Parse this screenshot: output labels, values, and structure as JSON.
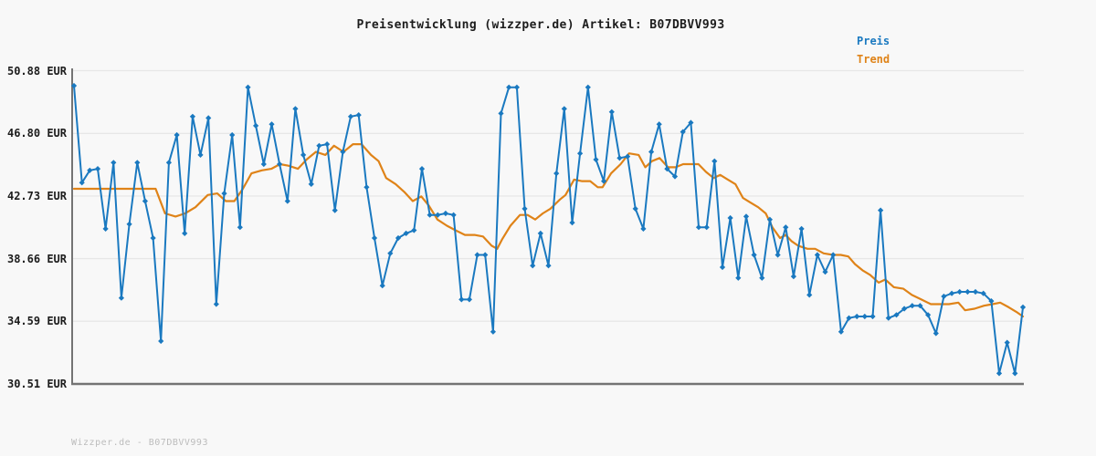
{
  "title": "Preisentwicklung (wizzper.de) Artikel: B07DBVV993",
  "legend": {
    "preis_label": "Preis",
    "trend_label": "Trend"
  },
  "watermark": "Wizzper.de - B07DBVV993",
  "colors": {
    "price": "#1a79c0",
    "trend": "#df8318",
    "grid": "#e7e7e7",
    "axis": "#747474",
    "text": "#1c1c1c",
    "watermark": "#bcbcbc",
    "background": "#f8f8f8"
  },
  "y_axis": {
    "tick_labels": [
      "50.88 EUR",
      "46.80 EUR",
      "42.73 EUR",
      "38.66 EUR",
      "34.59 EUR",
      "30.51 EUR"
    ],
    "tick_values": [
      50.88,
      46.8,
      42.73,
      38.66,
      34.59,
      30.51
    ]
  },
  "chart_data": {
    "type": "line",
    "title": "Preisentwicklung (wizzper.de) Artikel: B07DBVV993",
    "unit": "EUR",
    "ylim": [
      30.51,
      50.88
    ],
    "y_ticks": [
      50.88,
      46.8,
      42.73,
      38.66,
      34.59,
      30.51
    ],
    "grid": "horizontal",
    "legend_position": "top-right",
    "x_axis_labels": "none",
    "series": [
      {
        "name": "Preis",
        "color": "#1a79c0",
        "marker": "diamond",
        "values": [
          49.9,
          43.6,
          44.4,
          44.5,
          40.6,
          44.9,
          36.1,
          40.9,
          44.9,
          42.4,
          40.0,
          33.3,
          44.9,
          46.7,
          40.3,
          47.9,
          45.4,
          47.8,
          35.7,
          42.9,
          46.7,
          40.7,
          49.8,
          47.3,
          44.8,
          47.4,
          44.8,
          42.4,
          48.4,
          45.4,
          43.5,
          46.0,
          46.1,
          41.8,
          45.6,
          47.9,
          48.0,
          43.3,
          40.0,
          36.9,
          39.0,
          40.0,
          40.3,
          40.5,
          44.5,
          41.5,
          41.5,
          41.6,
          41.5,
          36.0,
          36.0,
          38.9,
          38.9,
          33.9,
          48.1,
          49.8,
          49.8,
          41.9,
          38.2,
          40.3,
          38.2,
          44.2,
          48.4,
          41.0,
          45.5,
          49.8,
          45.1,
          43.7,
          48.2,
          45.2,
          45.3,
          41.9,
          40.6,
          45.6,
          47.4,
          44.5,
          44.0,
          46.9,
          47.5,
          40.7,
          40.7,
          45.0,
          38.1,
          41.3,
          37.4,
          41.4,
          38.9,
          37.4,
          41.2,
          38.9,
          40.7,
          37.5,
          40.6,
          36.3,
          38.9,
          37.8,
          38.9,
          33.9,
          34.8,
          34.9,
          34.9,
          34.9,
          41.8,
          34.8,
          35.0,
          35.4,
          35.6,
          35.6,
          35.0,
          33.8,
          36.2,
          36.4,
          36.5,
          36.5,
          36.5,
          36.4,
          35.9,
          31.2,
          33.2,
          31.2,
          35.5
        ]
      },
      {
        "name": "Trend",
        "color": "#df8318",
        "marker": "none",
        "points": [
          [
            0.0,
            43.2
          ],
          [
            0.086,
            43.2
          ],
          [
            0.096,
            41.6
          ],
          [
            0.107,
            41.4
          ],
          [
            0.117,
            41.6
          ],
          [
            0.128,
            42.0
          ],
          [
            0.141,
            42.8
          ],
          [
            0.151,
            42.9
          ],
          [
            0.16,
            42.4
          ],
          [
            0.169,
            42.4
          ],
          [
            0.178,
            43.2
          ],
          [
            0.187,
            44.2
          ],
          [
            0.198,
            44.4
          ],
          [
            0.208,
            44.5
          ],
          [
            0.217,
            44.8
          ],
          [
            0.226,
            44.7
          ],
          [
            0.236,
            44.5
          ],
          [
            0.245,
            45.1
          ],
          [
            0.255,
            45.6
          ],
          [
            0.265,
            45.4
          ],
          [
            0.274,
            46.0
          ],
          [
            0.284,
            45.6
          ],
          [
            0.294,
            46.1
          ],
          [
            0.303,
            46.1
          ],
          [
            0.313,
            45.4
          ],
          [
            0.321,
            45.0
          ],
          [
            0.329,
            43.9
          ],
          [
            0.339,
            43.5
          ],
          [
            0.348,
            43.0
          ],
          [
            0.357,
            42.4
          ],
          [
            0.366,
            42.7
          ],
          [
            0.374,
            42.1
          ],
          [
            0.383,
            41.2
          ],
          [
            0.393,
            40.8
          ],
          [
            0.402,
            40.5
          ],
          [
            0.412,
            40.2
          ],
          [
            0.422,
            40.2
          ],
          [
            0.431,
            40.1
          ],
          [
            0.44,
            39.5
          ],
          [
            0.446,
            39.3
          ],
          [
            0.451,
            39.9
          ],
          [
            0.46,
            40.8
          ],
          [
            0.47,
            41.5
          ],
          [
            0.478,
            41.5
          ],
          [
            0.486,
            41.2
          ],
          [
            0.494,
            41.6
          ],
          [
            0.502,
            41.9
          ],
          [
            0.512,
            42.5
          ],
          [
            0.518,
            42.8
          ],
          [
            0.527,
            43.8
          ],
          [
            0.535,
            43.7
          ],
          [
            0.544,
            43.7
          ],
          [
            0.552,
            43.3
          ],
          [
            0.557,
            43.3
          ],
          [
            0.566,
            44.2
          ],
          [
            0.576,
            44.8
          ],
          [
            0.585,
            45.5
          ],
          [
            0.595,
            45.4
          ],
          [
            0.602,
            44.6
          ],
          [
            0.609,
            45.0
          ],
          [
            0.617,
            45.2
          ],
          [
            0.626,
            44.6
          ],
          [
            0.634,
            44.6
          ],
          [
            0.642,
            44.8
          ],
          [
            0.651,
            44.8
          ],
          [
            0.658,
            44.8
          ],
          [
            0.666,
            44.3
          ],
          [
            0.674,
            43.9
          ],
          [
            0.681,
            44.1
          ],
          [
            0.689,
            43.8
          ],
          [
            0.697,
            43.5
          ],
          [
            0.705,
            42.6
          ],
          [
            0.713,
            42.3
          ],
          [
            0.721,
            42.0
          ],
          [
            0.729,
            41.6
          ],
          [
            0.736,
            40.7
          ],
          [
            0.744,
            40.0
          ],
          [
            0.75,
            40.2
          ],
          [
            0.756,
            39.8
          ],
          [
            0.763,
            39.5
          ],
          [
            0.773,
            39.3
          ],
          [
            0.781,
            39.3
          ],
          [
            0.79,
            39.0
          ],
          [
            0.8,
            38.9
          ],
          [
            0.808,
            38.9
          ],
          [
            0.816,
            38.8
          ],
          [
            0.823,
            38.3
          ],
          [
            0.831,
            37.9
          ],
          [
            0.839,
            37.6
          ],
          [
            0.848,
            37.1
          ],
          [
            0.855,
            37.3
          ],
          [
            0.864,
            36.8
          ],
          [
            0.874,
            36.7
          ],
          [
            0.883,
            36.3
          ],
          [
            0.893,
            36.0
          ],
          [
            0.903,
            35.7
          ],
          [
            0.912,
            35.7
          ],
          [
            0.922,
            35.7
          ],
          [
            0.932,
            35.8
          ],
          [
            0.939,
            35.3
          ],
          [
            0.949,
            35.4
          ],
          [
            0.959,
            35.6
          ],
          [
            0.968,
            35.7
          ],
          [
            0.976,
            35.8
          ],
          [
            0.985,
            35.5
          ],
          [
            0.993,
            35.2
          ],
          [
            1.0,
            34.9
          ]
        ]
      }
    ]
  }
}
